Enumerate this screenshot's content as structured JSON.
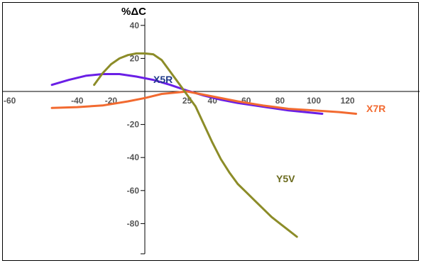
{
  "chart_data": {
    "type": "line",
    "title": "",
    "ylabel": "%ΔC",
    "xlabel": "",
    "xlim": [
      -60,
      130
    ],
    "ylim": [
      -100,
      45
    ],
    "x_ticks": [
      -60,
      -40,
      -20,
      25,
      40,
      60,
      80,
      100,
      120
    ],
    "y_ticks": [
      40,
      20,
      -20,
      -40,
      -60,
      -80
    ],
    "grid": false,
    "legend": "none",
    "series": [
      {
        "name": "X5R",
        "color": "#6a1fe6",
        "label_color": "#1f3a8a",
        "x": [
          -55,
          -45,
          -35,
          -25,
          -15,
          -5,
          5,
          15,
          25,
          35,
          45,
          55,
          65,
          75,
          85,
          95,
          105
        ],
        "y": [
          4,
          7,
          9.5,
          10.5,
          10.5,
          9,
          7,
          4,
          0.5,
          -2.5,
          -5,
          -7,
          -8.5,
          -10,
          -11.5,
          -12.5,
          -13.5
        ]
      },
      {
        "name": "X7R",
        "color": "#f26a30",
        "label_color": "#f26a30",
        "x": [
          -55,
          -40,
          -25,
          -10,
          0,
          10,
          25,
          40,
          55,
          70,
          85,
          100,
          115,
          125
        ],
        "y": [
          -10,
          -9.5,
          -8.5,
          -6,
          -4,
          -1.5,
          0,
          -3,
          -6,
          -8.5,
          -10.5,
          -11.5,
          -12.5,
          -13.5
        ]
      },
      {
        "name": "Y5V",
        "color": "#8c8c28",
        "label_color": "#6b6b1e",
        "x": [
          -30,
          -25,
          -20,
          -15,
          -10,
          -5,
          0,
          5,
          10,
          15,
          20,
          25,
          30,
          35,
          40,
          45,
          50,
          55,
          60,
          65,
          70,
          75,
          80,
          85,
          90
        ],
        "y": [
          4,
          11,
          16.5,
          20,
          22,
          23,
          23,
          22.5,
          19,
          12,
          5,
          -2,
          -9,
          -20,
          -31,
          -41,
          -49,
          -56,
          -61,
          -66,
          -71,
          -76,
          -80,
          -84,
          -88
        ]
      }
    ]
  }
}
